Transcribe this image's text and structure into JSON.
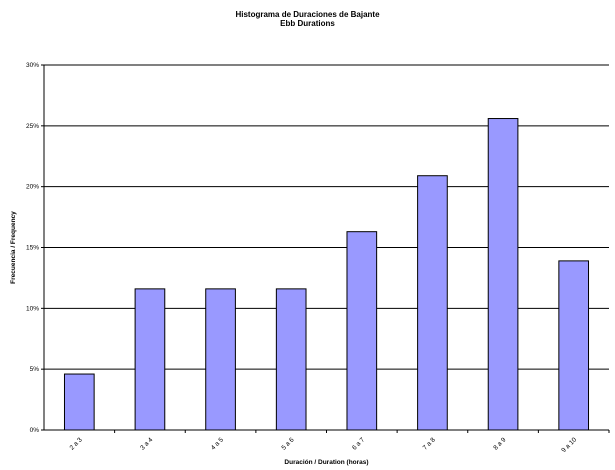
{
  "chart_data": {
    "type": "bar",
    "title": "Histograma de Duraciones de Bajante",
    "subtitle": "Ebb Durations",
    "xlabel": "Duración / Duration (horas)",
    "ylabel": "Frecuencia / Frequency",
    "categories": [
      "2 a 3",
      "3 a 4",
      "4 a 5",
      "5 a 6",
      "6 a 7",
      "7 a 8",
      "8 a 9",
      "9 a 10"
    ],
    "values": [
      4.6,
      11.6,
      11.6,
      11.6,
      16.3,
      20.9,
      25.6,
      13.9
    ],
    "ylim": [
      0,
      30
    ],
    "yticks": [
      0,
      5,
      10,
      15,
      20,
      25,
      30
    ],
    "ytick_labels": [
      "0%",
      "5%",
      "10%",
      "15%",
      "20%",
      "25%",
      "30%"
    ],
    "grid": true,
    "legend": "none",
    "bar_color": "#9999ff",
    "bar_edge_color": "#000000"
  }
}
